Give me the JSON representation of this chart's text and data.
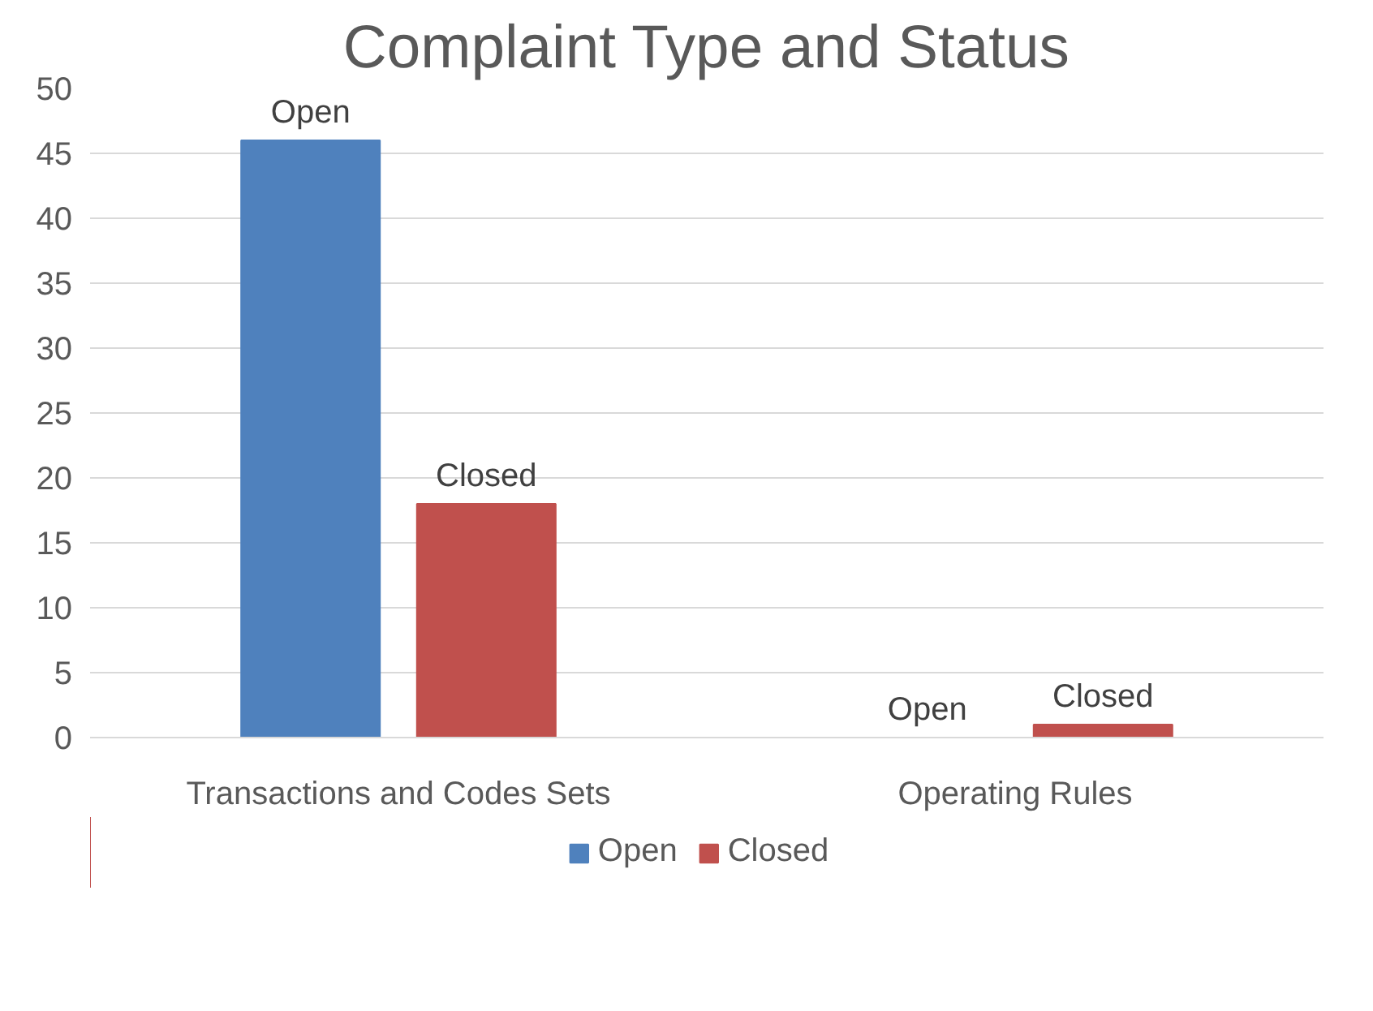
{
  "chart_data": {
    "type": "bar",
    "title": "Complaint Type and Status",
    "categories": [
      "Transactions and Codes Sets",
      "Operating Rules"
    ],
    "series": [
      {
        "name": "Open",
        "color": "#4f81bd",
        "values": [
          46,
          0
        ]
      },
      {
        "name": "Closed",
        "color": "#c0504d",
        "values": [
          18,
          1
        ]
      }
    ],
    "ylim": [
      0,
      50
    ],
    "yticks": [
      0,
      5,
      10,
      15,
      20,
      25,
      30,
      35,
      40,
      45,
      50
    ],
    "grid": "y",
    "legend": "bottom",
    "annotations": [
      "Open",
      "Closed",
      "Open",
      "Closed"
    ]
  }
}
